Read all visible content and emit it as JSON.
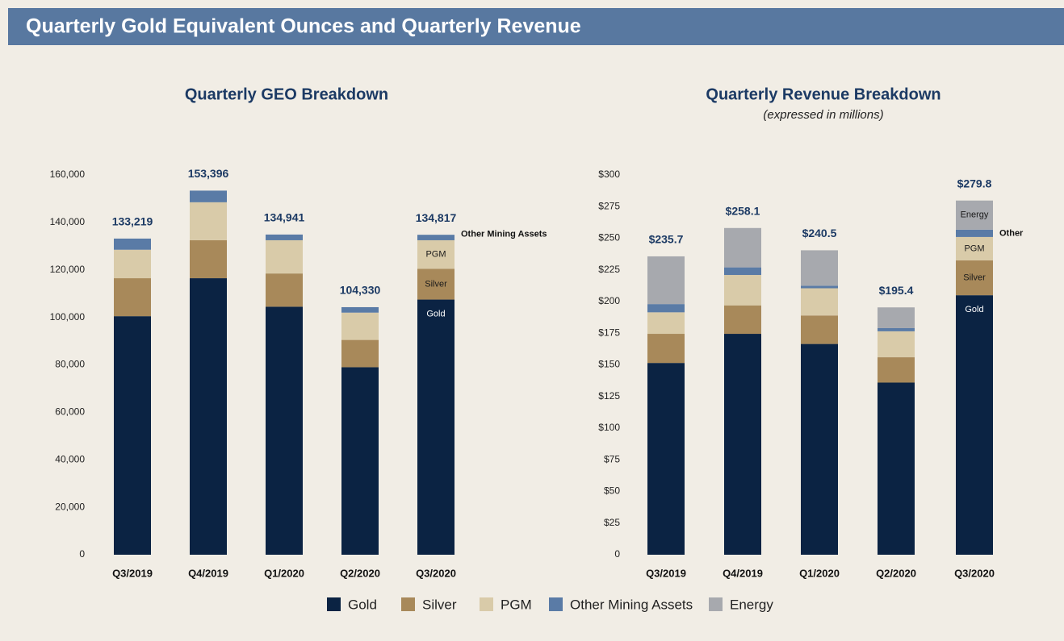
{
  "header": {
    "title": "Quarterly Gold Equivalent Ounces and Quarterly Revenue"
  },
  "chart_data": [
    {
      "type": "stacked_bar",
      "title": "Quarterly GEO Breakdown",
      "categories": [
        "Q3/2019",
        "Q4/2019",
        "Q1/2020",
        "Q2/2020",
        "Q3/2020"
      ],
      "series": [
        {
          "name": "Gold",
          "color": "#0b2343",
          "values": [
            100500,
            116500,
            104500,
            79000,
            107500
          ]
        },
        {
          "name": "Silver",
          "color": "#a8895a",
          "values": [
            16000,
            16000,
            14000,
            11500,
            13000
          ]
        },
        {
          "name": "PGM",
          "color": "#d9cba9",
          "values": [
            12000,
            16000,
            14000,
            11500,
            12000
          ]
        },
        {
          "name": "Other Mining Assets",
          "color": "#5a7ba6",
          "values": [
            4700,
            4900,
            2400,
            2300,
            2300
          ]
        }
      ],
      "totals": {
        "values": [
          133219,
          153396,
          134941,
          104330,
          134817
        ],
        "value_labels": [
          "133,219",
          "153,396",
          "134,941",
          "104,330",
          "134,817"
        ]
      },
      "ylim": [
        0,
        160000
      ],
      "yticks": [
        0,
        {
          "value": 20000,
          "label": "20,000"
        },
        {
          "value": 40000,
          "label": "40,000"
        },
        {
          "value": 60000,
          "label": "60,000"
        },
        {
          "value": 80000,
          "label": "80,000"
        },
        {
          "value": 100000,
          "label": "100,000"
        },
        {
          "value": 120000,
          "label": "120,000"
        },
        {
          "value": 140000,
          "label": "140,000"
        },
        {
          "value": 160000,
          "label": "160,000"
        }
      ]
    },
    {
      "type": "stacked_bar",
      "title": "Quarterly Revenue Breakdown",
      "subtitle": "(expressed in millions)",
      "categories": [
        "Q3/2019",
        "Q4/2019",
        "Q1/2020",
        "Q2/2020",
        "Q3/2020"
      ],
      "series": [
        {
          "name": "Gold",
          "color": "#0b2343",
          "values": [
            151.5,
            174.5,
            166.5,
            136,
            205
          ]
        },
        {
          "name": "Silver",
          "color": "#a8895a",
          "values": [
            23,
            22.5,
            22.5,
            20,
            27.5
          ]
        },
        {
          "name": "PGM",
          "color": "#d9cba9",
          "values": [
            17,
            24,
            21.5,
            20.5,
            18.5
          ]
        },
        {
          "name": "Other Mining Assets",
          "color": "#5a7ba6",
          "values": [
            6.5,
            6,
            2,
            2.5,
            5.8
          ]
        },
        {
          "name": "Energy",
          "color": "#a7a9ae",
          "values": [
            37.7,
            31.1,
            28,
            16.4,
            23
          ]
        }
      ],
      "segment_labels": [
        "Gold",
        "Silver",
        "PGM",
        "Other",
        "Energy"
      ],
      "totals": {
        "values": [
          235.7,
          258.1,
          240.5,
          195.4,
          279.8
        ],
        "value_labels": [
          "$235.7",
          "$258.1",
          "$240.5",
          "$195.4",
          "$279.8"
        ]
      },
      "ylim": [
        0,
        300
      ],
      "yticks": [
        0,
        {
          "value": 25,
          "label": "$25"
        },
        {
          "value": 50,
          "label": "$50"
        },
        {
          "value": 75,
          "label": "$75"
        },
        {
          "value": 100,
          "label": "$100"
        },
        {
          "value": 125,
          "label": "$125"
        },
        {
          "value": 150,
          "label": "$150"
        },
        {
          "value": 175,
          "label": "$175"
        },
        {
          "value": 200,
          "label": "$200"
        },
        {
          "value": 225,
          "label": "$225"
        },
        {
          "value": 250,
          "label": "$250"
        },
        {
          "value": 275,
          "label": "$275"
        },
        {
          "value": 300,
          "label": "$300"
        }
      ]
    }
  ]
}
